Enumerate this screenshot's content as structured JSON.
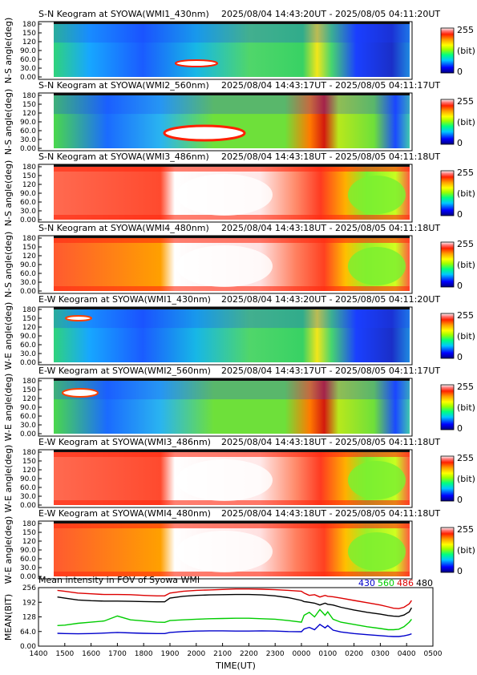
{
  "colors": {
    "series_430": "#0000cc",
    "series_560": "#00cc00",
    "series_486": "#dd0000",
    "series_480": "#000000",
    "colormap": [
      "#000080",
      "#0000ff",
      "#00c8ff",
      "#00ff80",
      "#9cff00",
      "#ffff00",
      "#ffa000",
      "#ff2000",
      "#ff8080",
      "#ffffff"
    ]
  },
  "colorbar": {
    "max_label": "255",
    "unit_label": "(bit)",
    "min_label": "0"
  },
  "panels": [
    {
      "title": "S-N Keogram at SYOWA(WMI1_430nm)",
      "time_range": "2025/08/04 14:43:20UT - 2025/08/05 04:11:20UT",
      "ylabel": "N-S angle(deg)",
      "yticks": [
        "180",
        "150",
        "120",
        "90.0",
        "60.0",
        "30.0",
        "0.00"
      ]
    },
    {
      "title": "S-N Keogram at SYOWA(WMI2_560nm)",
      "time_range": "2025/08/04 14:43:17UT - 2025/08/05 04:11:17UT",
      "ylabel": "N-S angle(deg)",
      "yticks": [
        "180",
        "150",
        "120",
        "90.0",
        "60.0",
        "30.0",
        "0.00"
      ]
    },
    {
      "title": "S-N Keogram at SYOWA(WMI3_486nm)",
      "time_range": "2025/08/04 14:43:18UT - 2025/08/05 04:11:18UT",
      "ylabel": "N-S angle(deg)",
      "yticks": [
        "180",
        "150",
        "120",
        "90.0",
        "60.0",
        "30.0",
        "0.00"
      ]
    },
    {
      "title": "S-N Keogram at SYOWA(WMI4_480nm)",
      "time_range": "2025/08/04 14:43:18UT - 2025/08/05 04:11:18UT",
      "ylabel": "N-S angle(deg)",
      "yticks": [
        "180",
        "150",
        "120",
        "90.0",
        "60.0",
        "30.0",
        "0.00"
      ]
    },
    {
      "title": "E-W Keogram at SYOWA(WMI1_430nm)",
      "time_range": "2025/08/04 14:43:20UT - 2025/08/05 04:11:20UT",
      "ylabel": "W-E angle(deg)",
      "yticks": [
        "180",
        "150",
        "120",
        "90.0",
        "60.0",
        "30.0",
        "0.00"
      ]
    },
    {
      "title": "E-W Keogram at SYOWA(WMI2_560nm)",
      "time_range": "2025/08/04 14:43:17UT - 2025/08/05 04:11:17UT",
      "ylabel": "W-E angle(deg)",
      "yticks": [
        "180",
        "150",
        "120",
        "90.0",
        "60.0",
        "30.0",
        "0.00"
      ]
    },
    {
      "title": "E-W Keogram at SYOWA(WMI3_486nm)",
      "time_range": "2025/08/04 14:43:18UT - 2025/08/05 04:11:18UT",
      "ylabel": "W-E angle(deg)",
      "yticks": [
        "180",
        "150",
        "120",
        "90.0",
        "60.0",
        "30.0",
        "0.00"
      ]
    },
    {
      "title": "E-W Keogram at SYOWA(WMI4_480nm)",
      "time_range": "2025/08/04 14:43:18UT - 2025/08/05 04:11:18UT",
      "ylabel": "W-E angle(deg)",
      "yticks": [
        "180",
        "150",
        "120",
        "90.0",
        "60.0",
        "30.0",
        "0.00"
      ]
    }
  ],
  "chart_data": {
    "type": "line",
    "title": "Mean intensity in FOV of Syowa WMI",
    "xlabel": "TIME(UT)",
    "ylabel": "MEAN(BIT)",
    "xticks": [
      "1400",
      "1500",
      "1600",
      "1700",
      "1800",
      "1900",
      "2000",
      "2100",
      "2200",
      "2300",
      "0000",
      "0100",
      "0200",
      "0300",
      "0400",
      "0500"
    ],
    "yticks": [
      "256",
      "192",
      "128",
      "64.0",
      "0.00"
    ],
    "ylim": [
      0,
      256
    ],
    "x_hours": [
      14.72,
      15.0,
      15.5,
      16.0,
      16.5,
      17.0,
      17.5,
      18.0,
      18.5,
      18.8,
      19.0,
      19.5,
      20.0,
      20.5,
      21.0,
      21.5,
      22.0,
      22.5,
      23.0,
      23.5,
      24.0,
      24.1,
      24.3,
      24.5,
      24.7,
      24.9,
      25.0,
      25.2,
      25.5,
      26.0,
      26.5,
      27.0,
      27.3,
      27.5,
      27.7,
      27.9,
      28.1,
      28.19
    ],
    "series": [
      {
        "name": "430",
        "color": "#0000cc",
        "values": [
          56,
          55,
          54,
          55,
          57,
          60,
          58,
          56,
          55,
          55,
          60,
          64,
          66,
          67,
          67,
          66,
          66,
          67,
          66,
          64,
          63,
          75,
          82,
          72,
          95,
          80,
          90,
          70,
          62,
          55,
          50,
          46,
          43,
          42,
          42,
          45,
          50,
          54
        ]
      },
      {
        "name": "560",
        "color": "#00cc00",
        "values": [
          90,
          92,
          100,
          105,
          110,
          132,
          115,
          110,
          105,
          104,
          112,
          115,
          118,
          120,
          121,
          122,
          122,
          120,
          118,
          112,
          105,
          135,
          148,
          128,
          160,
          135,
          150,
          118,
          105,
          95,
          85,
          77,
          72,
          72,
          74,
          85,
          105,
          118
        ]
      },
      {
        "name": "486",
        "color": "#dd0000",
        "values": [
          244,
          240,
          232,
          229,
          226,
          226,
          225,
          222,
          220,
          220,
          232,
          240,
          244,
          246,
          248,
          250,
          250,
          249,
          247,
          244,
          240,
          232,
          222,
          225,
          215,
          222,
          218,
          216,
          210,
          200,
          190,
          180,
          172,
          166,
          164,
          170,
          185,
          200
        ]
      },
      {
        "name": "480",
        "color": "#000000",
        "values": [
          215,
          210,
          202,
          199,
          197,
          197,
          196,
          195,
          194,
          194,
          210,
          218,
          222,
          224,
          225,
          226,
          226,
          224,
          220,
          212,
          200,
          195,
          192,
          188,
          180,
          188,
          183,
          180,
          170,
          158,
          148,
          140,
          134,
          131,
          130,
          136,
          150,
          168
        ]
      }
    ]
  },
  "legend": {
    "label_430": "430",
    "label_560": "560",
    "label_486": "486",
    "label_480": "480"
  }
}
